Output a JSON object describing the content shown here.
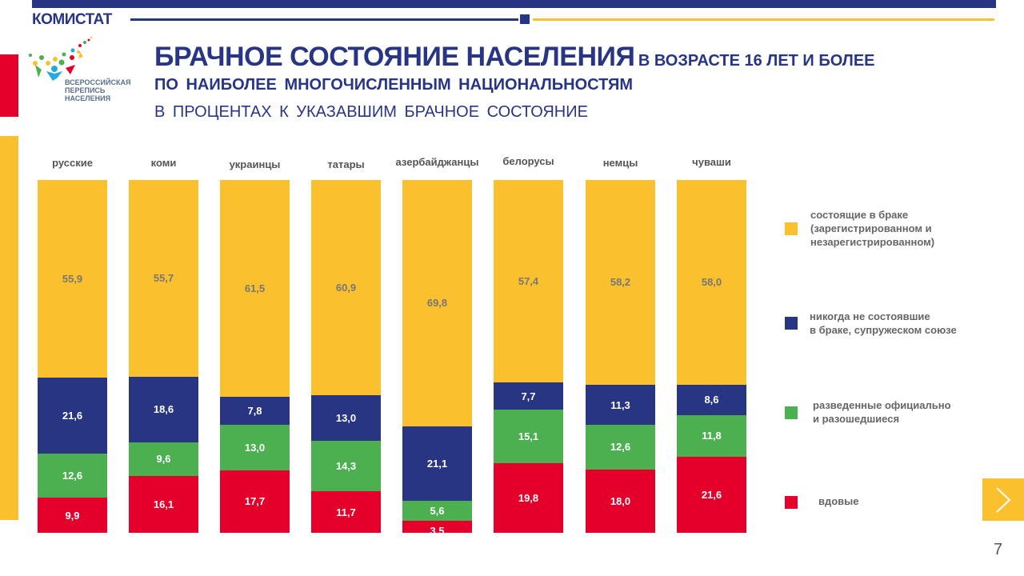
{
  "header": {
    "brand": "КОМИСТАТ",
    "logo_text": [
      "ВСЕРОССИЙСКАЯ",
      "ПЕРЕПИСЬ",
      "НАСЕЛЕНИЯ"
    ]
  },
  "title": {
    "main": "БРАЧНОЕ СОСТОЯНИЕ НАСЕЛЕНИЯ",
    "main_suffix": "В ВОЗРАСТЕ 16 ЛЕТ И БОЛЕЕ",
    "line2": "ПО НАИБОЛЕЕ  МНОГОЧИСЛЕННЫМ  НАЦИОНАЛЬНОСТЯМ",
    "line3": "В ПРОЦЕНТАХ  К УКАЗАВШИМ  БРАЧНОЕ  СОСТОЯНИЕ"
  },
  "colors": {
    "navy": "#283583",
    "yellow": "#fbc02d",
    "green": "#4caf50",
    "red": "#e4002b"
  },
  "chart_data": {
    "type": "bar",
    "stacked": true,
    "title": "БРАЧНОЕ СОСТОЯНИЕ НАСЕЛЕНИЯ В ВОЗРАСТЕ 16 ЛЕТ И БОЛЕЕ",
    "categories": [
      "русские",
      "коми",
      "украинцы",
      "татары",
      "азербайджанцы",
      "белорусы",
      "немцы",
      "чуваши"
    ],
    "ylim": [
      0,
      100
    ],
    "series": [
      {
        "name": "вдовые",
        "color": "#e4002b",
        "labels": [
          "9,9",
          "16,1",
          "17,7",
          "11,7",
          "3,5",
          "19,8",
          "18,0",
          "21,6"
        ],
        "values": [
          9.9,
          16.1,
          17.7,
          11.7,
          3.5,
          19.8,
          18.0,
          21.6
        ]
      },
      {
        "name": "разведенные официально и разошедшиеся",
        "color": "#4caf50",
        "labels": [
          "12,6",
          "9,6",
          "13,0",
          "14,3",
          "5,6",
          "15,1",
          "12,6",
          "11,8"
        ],
        "values": [
          12.6,
          9.6,
          13.0,
          14.3,
          5.6,
          15.1,
          12.6,
          11.8
        ]
      },
      {
        "name": "никогда не состоявшие в браке, супружеском союзе",
        "color": "#283583",
        "labels": [
          "21,6",
          "18,6",
          "7,8",
          "13,0",
          "21,1",
          "7,7",
          "11,3",
          "8,6"
        ],
        "values": [
          21.6,
          18.6,
          7.8,
          13.0,
          21.1,
          7.7,
          11.3,
          8.6
        ]
      },
      {
        "name": "состоящие в браке (зарегистрированном и незарегистрированном)",
        "color": "#fbc02d",
        "labels": [
          "55,9",
          "55,7",
          "61,5",
          "60,9",
          "69,8",
          "57,4",
          "58,2",
          "58,0"
        ],
        "values": [
          55.9,
          55.7,
          61.5,
          60.9,
          69.8,
          57.4,
          58.2,
          58.0
        ]
      }
    ],
    "legend": [
      {
        "lines": [
          "состоящие в браке",
          "(зарегистрированном и",
          "незарегистрированном)"
        ],
        "color": "#fbc02d"
      },
      {
        "lines": [
          "никогда не состоявшие",
          "в браке, супружеском союзе"
        ],
        "color": "#283583"
      },
      {
        "lines": [
          "разведенные официально",
          "и разошедшиеся"
        ],
        "color": "#4caf50"
      },
      {
        "lines": [
          "вдовые"
        ],
        "color": "#e4002b"
      }
    ],
    "legend_position": "right"
  },
  "footer": {
    "page": "7"
  }
}
